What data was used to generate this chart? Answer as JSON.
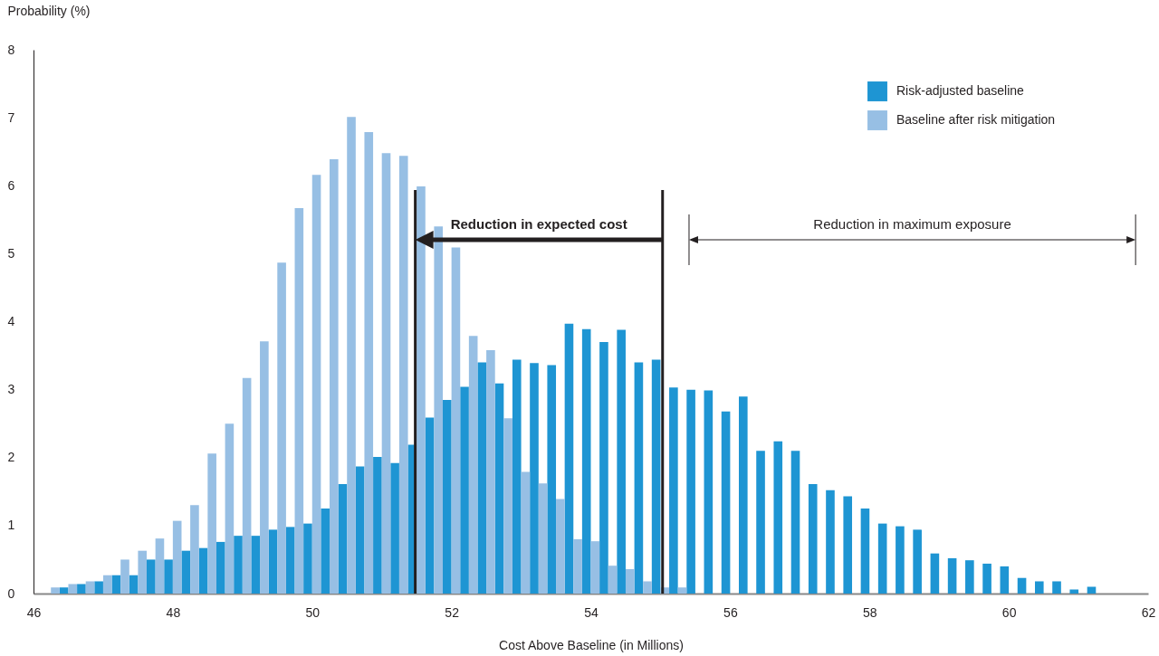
{
  "chart_data": {
    "type": "bar",
    "xlabel": "Cost Above Baseline (in Millions)",
    "ylabel": "Probability (%)",
    "x": [
      46.375,
      46.625,
      46.875,
      47.125,
      47.375,
      47.625,
      47.875,
      48.125,
      48.375,
      48.625,
      48.875,
      49.125,
      49.375,
      49.625,
      49.875,
      50.125,
      50.375,
      50.625,
      50.875,
      51.125,
      51.375,
      51.625,
      51.875,
      52.125,
      52.375,
      52.625,
      52.875,
      53.125,
      53.375,
      53.625,
      53.875,
      54.125,
      54.375,
      54.625,
      54.875,
      55.125,
      55.375,
      55.625,
      55.875,
      56.125,
      56.375,
      56.625,
      56.875,
      57.125,
      57.375,
      57.625,
      57.875,
      58.125,
      58.375,
      58.625,
      58.875,
      59.125,
      59.375,
      59.625,
      59.875,
      60.125,
      60.375,
      60.625,
      60.875,
      61.125
    ],
    "series": [
      {
        "name": "Risk-adjusted baseline",
        "color": "#1e95d3",
        "values": [
          0.09,
          0.14,
          0.18,
          0.27,
          0.27,
          0.5,
          0.5,
          0.63,
          0.67,
          0.76,
          0.85,
          0.85,
          0.94,
          0.98,
          1.03,
          1.25,
          1.61,
          1.87,
          2.01,
          1.92,
          2.19,
          2.59,
          2.85,
          3.04,
          3.4,
          3.09,
          3.44,
          3.39,
          3.36,
          3.97,
          3.89,
          3.7,
          3.88,
          3.4,
          3.44,
          3.03,
          3.0,
          2.99,
          2.68,
          2.9,
          2.1,
          2.24,
          2.1,
          1.61,
          1.52,
          1.43,
          1.25,
          1.03,
          0.99,
          0.94,
          0.59,
          0.52,
          0.49,
          0.44,
          0.4,
          0.23,
          0.18,
          0.18,
          0.06,
          0.1
        ]
      },
      {
        "name": "Baseline after risk mitigation",
        "color": "#97bfe4",
        "values": [
          0.09,
          0.14,
          0.18,
          0.27,
          0.5,
          0.63,
          0.81,
          1.07,
          1.3,
          2.06,
          2.5,
          3.17,
          3.71,
          4.87,
          5.67,
          6.16,
          6.39,
          7.01,
          6.79,
          6.48,
          6.44,
          5.99,
          5.4,
          5.09,
          3.79,
          3.58,
          2.58,
          1.79,
          1.62,
          1.39,
          0.8,
          0.77,
          0.41,
          0.36,
          0.18,
          0.09,
          0.09,
          null,
          null,
          null,
          null,
          null,
          null,
          null,
          null,
          null,
          null,
          null,
          null,
          null,
          null,
          null,
          null,
          null,
          null,
          null,
          null,
          null,
          null,
          null
        ]
      }
    ],
    "xlim": [
      46,
      62
    ],
    "xticks": [
      46,
      48,
      50,
      52,
      54,
      56,
      58,
      60,
      62
    ],
    "ylim": [
      0,
      8
    ],
    "yticks": [
      0,
      1,
      2,
      3,
      4,
      5,
      6,
      7,
      8
    ],
    "ref_lines": [
      {
        "axis": "x",
        "value": 51.48,
        "color": "#231f20"
      },
      {
        "axis": "x",
        "value": 55.03,
        "color": "#231f20"
      },
      {
        "axis": "x",
        "value": 55.41,
        "color": "#231f20"
      },
      {
        "axis": "x",
        "value": 61.82,
        "color": "#231f20"
      }
    ],
    "annotations": [
      "Reduction in expected cost",
      "Reduction in maximum exposure"
    ],
    "grid": false,
    "legend": "top right"
  }
}
